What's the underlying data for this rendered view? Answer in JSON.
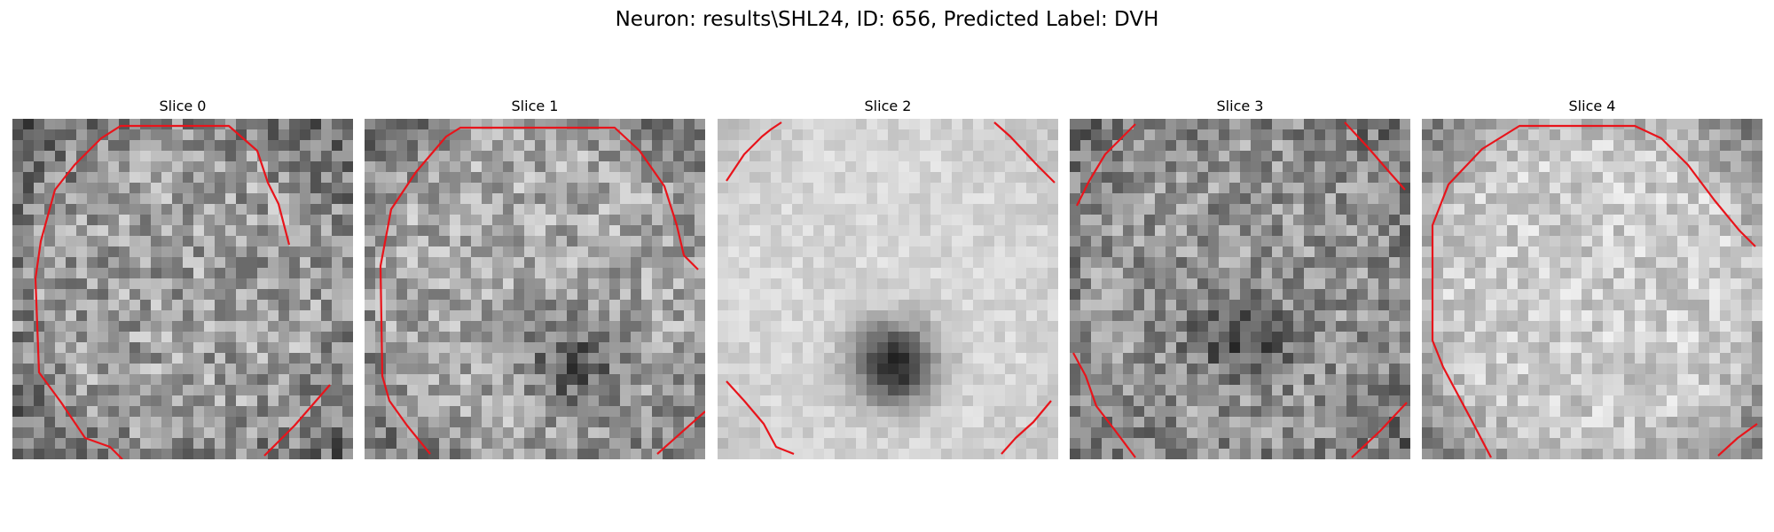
{
  "figure": {
    "title": "Neuron: results\\SHL24, ID: 656, Predicted Label: DVH"
  },
  "panels": [
    {
      "title": "Slice 0",
      "image": "noisy-grayscale-soma-bright-center",
      "contour_color": "#e8141b"
    },
    {
      "title": "Slice 1",
      "image": "noisy-grayscale-soma-dark-lower-right",
      "contour_color": "#e8141b"
    },
    {
      "title": "Slice 2",
      "image": "bright-disk-dark-center-nucleus",
      "contour_color": "#e8141b"
    },
    {
      "title": "Slice 3",
      "image": "noisy-grayscale-dark-band-center",
      "contour_color": "#e8141b"
    },
    {
      "title": "Slice 4",
      "image": "bright-grayscale-disk",
      "contour_color": "#e8141b"
    }
  ]
}
